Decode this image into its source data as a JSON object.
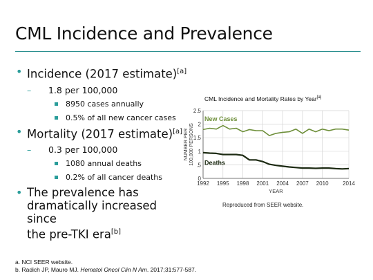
{
  "slide": {
    "title": "CML Incidence and Prevalence"
  },
  "bullets": {
    "incidence": {
      "label": "Incidence (2017 estimate)",
      "ref": "[a]",
      "rate": "1.8 per 100,000",
      "subs": [
        "8950 cases annually",
        "0.5% of all new cancer cases"
      ]
    },
    "mortality": {
      "label": "Mortality (2017 estimate)",
      "ref": "[a]",
      "rate": "0.3 per 100,000",
      "subs": [
        "1080 annual deaths",
        "0.2% of all cancer deaths"
      ]
    },
    "prevalence": {
      "line1": "The prevalence has",
      "line2": "dramatically increased since",
      "line3": "the pre-TKI era",
      "ref": "[b]"
    }
  },
  "chart_data": {
    "type": "line",
    "title": "CML Incidence and Mortality Rates by Year",
    "title_ref": "[a]",
    "xlabel": "YEAR",
    "ylabel_line1": "NUMBER PER",
    "ylabel_line2": "100,000 PERSONS",
    "xlim": [
      1992,
      2014
    ],
    "ylim": [
      0,
      2.5
    ],
    "xticks": [
      1992,
      1995,
      1998,
      2001,
      2004,
      2007,
      2010,
      2014
    ],
    "yticks": [
      0,
      0.5,
      1,
      1.5,
      2,
      2.5
    ],
    "ytick_labels": [
      "0",
      ".5",
      "1",
      "1.5",
      "2",
      "2.5"
    ],
    "grid": true,
    "series": [
      {
        "name": "New Cases",
        "color": "#6e8f3a",
        "x": [
          1992,
          1993,
          1994,
          1995,
          1996,
          1997,
          1998,
          1999,
          2000,
          2001,
          2002,
          2003,
          2004,
          2005,
          2006,
          2007,
          2008,
          2009,
          2010,
          2011,
          2012,
          2013,
          2014
        ],
        "values": [
          1.8,
          1.85,
          1.82,
          1.95,
          1.82,
          1.85,
          1.72,
          1.8,
          1.76,
          1.76,
          1.58,
          1.66,
          1.7,
          1.72,
          1.82,
          1.66,
          1.82,
          1.72,
          1.82,
          1.76,
          1.82,
          1.82,
          1.78
        ]
      },
      {
        "name": "Deaths",
        "color": "#1c2a12",
        "x": [
          1992,
          1993,
          1994,
          1995,
          1996,
          1997,
          1998,
          1999,
          2000,
          2001,
          2002,
          2003,
          2004,
          2005,
          2006,
          2007,
          2008,
          2009,
          2010,
          2011,
          2012,
          2013,
          2014
        ],
        "values": [
          0.95,
          0.93,
          0.92,
          0.88,
          0.88,
          0.88,
          0.85,
          0.68,
          0.68,
          0.62,
          0.52,
          0.48,
          0.45,
          0.42,
          0.4,
          0.38,
          0.38,
          0.37,
          0.38,
          0.38,
          0.36,
          0.35,
          0.36
        ]
      }
    ]
  },
  "chart_note": "Reproduced from SEER website.",
  "footnotes": {
    "a": "a. NCI SEER website.",
    "b_prefix": "b. Radich JP, Mauro MJ. ",
    "b_journal": "Hematol Oncol Clin N Am",
    "b_suffix": ". 2017;31:577-587."
  }
}
